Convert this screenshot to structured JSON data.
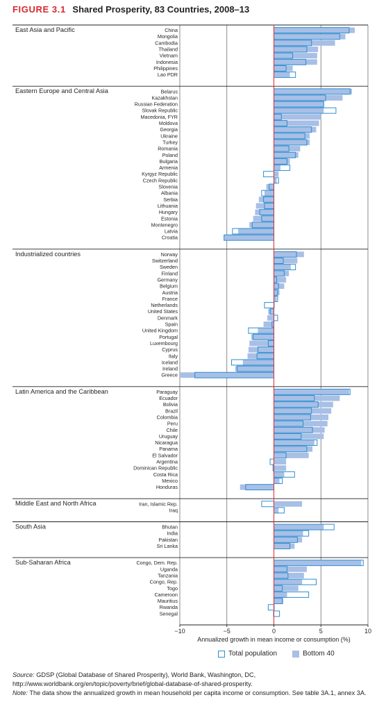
{
  "figure": {
    "number": "FIGURE 3.1",
    "title": "Shared Prosperity, 83 Countries, 2008–13"
  },
  "notes": {
    "source_label": "Source:",
    "source_text": "GDSP (Global Database of Shared Prosperity), World Bank, Washington, DC, http://www.worldbank.org/en/topic/poverty/brief/global-database-of-shared-prosperity.",
    "note_label": "Note:",
    "note_text": "The data show the annualized growth in mean household per capita income or consumption. See table 3A.1, annex 3A."
  },
  "chart_data": {
    "type": "bar",
    "orientation": "horizontal",
    "xlabel": "Annualized growth in mean income or consumption (%)",
    "xlim": [
      -10,
      10
    ],
    "xticks": [
      -10,
      -5,
      0,
      5,
      10
    ],
    "xtick_labels": [
      "−10",
      "−5",
      "0",
      "5",
      "10"
    ],
    "grid": "vertical",
    "legend_position": "bottom",
    "legend": [
      {
        "key": "total",
        "label": "Total population",
        "style": "outline"
      },
      {
        "key": "bottom40",
        "label": "Bottom 40",
        "style": "filled"
      }
    ],
    "colors": {
      "total": "#2a8ed0",
      "bottom40": "#a8bfe6",
      "zero_line": "#d7282f",
      "grid": "#6d6e71"
    },
    "groups": [
      {
        "name": "East Asia and Pacific",
        "countries": [
          {
            "name": "China",
            "total": 8.0,
            "bottom40": 8.6
          },
          {
            "name": "Mongolia",
            "total": 7.0,
            "bottom40": 7.6
          },
          {
            "name": "Cambodia",
            "total": 4.0,
            "bottom40": 6.5
          },
          {
            "name": "Thailand",
            "total": 3.5,
            "bottom40": 4.7
          },
          {
            "name": "Vietnam",
            "total": 2.0,
            "bottom40": 4.6
          },
          {
            "name": "Indonesia",
            "total": 3.4,
            "bottom40": 4.6
          },
          {
            "name": "Philippines",
            "total": 1.3,
            "bottom40": 2.0
          },
          {
            "name": "Lao PDR",
            "total": 2.3,
            "bottom40": 1.7
          }
        ]
      },
      {
        "name": "Eastern Europe and Central Asia",
        "countries": [
          {
            "name": "Belarus",
            "total": 8.1,
            "bottom40": 8.3
          },
          {
            "name": "Kazakhstan",
            "total": 5.5,
            "bottom40": 7.3
          },
          {
            "name": "Russian Federation",
            "total": 5.3,
            "bottom40": 5.3
          },
          {
            "name": "Slovak Republic",
            "total": 6.6,
            "bottom40": 5.3
          },
          {
            "name": "Macedonia, FYR",
            "total": 0.8,
            "bottom40": 5.0
          },
          {
            "name": "Moldova",
            "total": 1.4,
            "bottom40": 4.8
          },
          {
            "name": "Georgia",
            "total": 4.0,
            "bottom40": 4.5
          },
          {
            "name": "Ukraine",
            "total": 3.3,
            "bottom40": 3.8
          },
          {
            "name": "Turkey",
            "total": 3.5,
            "bottom40": 3.8
          },
          {
            "name": "Romania",
            "total": 1.6,
            "bottom40": 2.8
          },
          {
            "name": "Poland",
            "total": 2.3,
            "bottom40": 2.6
          },
          {
            "name": "Bulgaria",
            "total": 1.4,
            "bottom40": 1.7
          },
          {
            "name": "Armenia",
            "total": 1.7,
            "bottom40": 0.7
          },
          {
            "name": "Kyrgyz Republic",
            "total": -1.1,
            "bottom40": 0.5
          },
          {
            "name": "Czech Republic",
            "total": 0.5,
            "bottom40": 0.3
          },
          {
            "name": "Slovenia",
            "total": -0.5,
            "bottom40": -0.8
          },
          {
            "name": "Albania",
            "total": -1.3,
            "bottom40": -1.0
          },
          {
            "name": "Serbia",
            "total": -1.1,
            "bottom40": -1.6
          },
          {
            "name": "Lithuania",
            "total": -1.0,
            "bottom40": -1.9
          },
          {
            "name": "Hungary",
            "total": -1.5,
            "bottom40": -2.0
          },
          {
            "name": "Estonia",
            "total": -1.3,
            "bottom40": -2.2
          },
          {
            "name": "Montenegro",
            "total": -2.3,
            "bottom40": -2.6
          },
          {
            "name": "Latvia",
            "total": -4.4,
            "bottom40": -3.8
          },
          {
            "name": "Croatia",
            "total": -5.3,
            "bottom40": -5.3
          }
        ]
      },
      {
        "name": "Industrialized countries",
        "countries": [
          {
            "name": "Norway",
            "total": 2.4,
            "bottom40": 3.2
          },
          {
            "name": "Switzerland",
            "total": 1.0,
            "bottom40": 2.5
          },
          {
            "name": "Sweden",
            "total": 2.3,
            "bottom40": 1.8
          },
          {
            "name": "Finland",
            "total": 1.1,
            "bottom40": 1.6
          },
          {
            "name": "Germany",
            "total": 0.3,
            "bottom40": 1.3
          },
          {
            "name": "Belgium",
            "total": 0.5,
            "bottom40": 1.1
          },
          {
            "name": "Austria",
            "total": 0.4,
            "bottom40": 0.6
          },
          {
            "name": "France",
            "total": 0.4,
            "bottom40": 0.3
          },
          {
            "name": "Netherlands",
            "total": -1.0,
            "bottom40": 0.1
          },
          {
            "name": "United States",
            "total": -0.4,
            "bottom40": -0.6
          },
          {
            "name": "Denmark",
            "total": 0.4,
            "bottom40": -0.7
          },
          {
            "name": "Spain",
            "total": -0.2,
            "bottom40": -1.1
          },
          {
            "name": "United Kingdom",
            "total": -2.7,
            "bottom40": -1.7
          },
          {
            "name": "Portugal",
            "total": -2.2,
            "bottom40": -2.4
          },
          {
            "name": "Luxembourg",
            "total": -0.6,
            "bottom40": -2.6
          },
          {
            "name": "Cyprus",
            "total": -1.7,
            "bottom40": -2.7
          },
          {
            "name": "Italy",
            "total": -1.8,
            "bottom40": -2.8
          },
          {
            "name": "Iceland",
            "total": -4.5,
            "bottom40": -3.3
          },
          {
            "name": "Ireland",
            "total": -3.9,
            "bottom40": -4.1
          },
          {
            "name": "Greece",
            "total": -8.4,
            "bottom40": -10.0
          }
        ]
      },
      {
        "name": "Latin America and the Caribbean",
        "countries": [
          {
            "name": "Paraguay",
            "total": 8.1,
            "bottom40": 8.0
          },
          {
            "name": "Ecuador",
            "total": 4.3,
            "bottom40": 7.0
          },
          {
            "name": "Bolivia",
            "total": 4.7,
            "bottom40": 6.3
          },
          {
            "name": "Brazil",
            "total": 4.0,
            "bottom40": 6.1
          },
          {
            "name": "Colombia",
            "total": 3.9,
            "bottom40": 5.8
          },
          {
            "name": "Peru",
            "total": 3.1,
            "bottom40": 5.7
          },
          {
            "name": "Chile",
            "total": 4.1,
            "bottom40": 5.4
          },
          {
            "name": "Uruguay",
            "total": 2.9,
            "bottom40": 5.3
          },
          {
            "name": "Nicaragua",
            "total": 4.6,
            "bottom40": 4.3
          },
          {
            "name": "Panama",
            "total": 3.5,
            "bottom40": 4.1
          },
          {
            "name": "El Salvador",
            "total": 1.3,
            "bottom40": 3.7
          },
          {
            "name": "Argentina",
            "total": -0.4,
            "bottom40": 1.3
          },
          {
            "name": "Dominican Republic",
            "total": -0.1,
            "bottom40": 1.3
          },
          {
            "name": "Costa Rica",
            "total": 2.2,
            "bottom40": 1.1
          },
          {
            "name": "Mexico",
            "total": 0.9,
            "bottom40": 0.6
          },
          {
            "name": "Honduras",
            "total": -3.0,
            "bottom40": -3.6
          }
        ]
      },
      {
        "name": "Middle East and North Africa",
        "countries": [
          {
            "name": "Iran, Islamic Rep.",
            "total": -1.3,
            "bottom40": 3.0
          },
          {
            "name": "Iraq",
            "total": 1.1,
            "bottom40": 0.5
          }
        ]
      },
      {
        "name": "South Asia",
        "countries": [
          {
            "name": "Bhutan",
            "total": 6.4,
            "bottom40": 5.3
          },
          {
            "name": "India",
            "total": 3.7,
            "bottom40": 3.1
          },
          {
            "name": "Pakistan",
            "total": 2.5,
            "bottom40": 3.0
          },
          {
            "name": "Sri Lanka",
            "total": 1.7,
            "bottom40": 2.2
          }
        ]
      },
      {
        "name": "Sub-Saharan Africa",
        "countries": [
          {
            "name": "Congo, Dem. Rep.",
            "total": 9.5,
            "bottom40": 9.3
          },
          {
            "name": "Uganda",
            "total": 1.4,
            "bottom40": 3.5
          },
          {
            "name": "Tanzania",
            "total": 1.5,
            "bottom40": 3.2
          },
          {
            "name": "Congo, Rep.",
            "total": 4.5,
            "bottom40": 3.0
          },
          {
            "name": "Togo",
            "total": 0.9,
            "bottom40": 2.6
          },
          {
            "name": "Cameroon",
            "total": 3.7,
            "bottom40": 1.4
          },
          {
            "name": "Mauritius",
            "total": 0.9,
            "bottom40": 1.0
          },
          {
            "name": "Rwanda",
            "total": -0.6,
            "bottom40": 0.1
          },
          {
            "name": "Senegal",
            "total": 0.6,
            "bottom40": -0.1
          }
        ]
      }
    ]
  }
}
